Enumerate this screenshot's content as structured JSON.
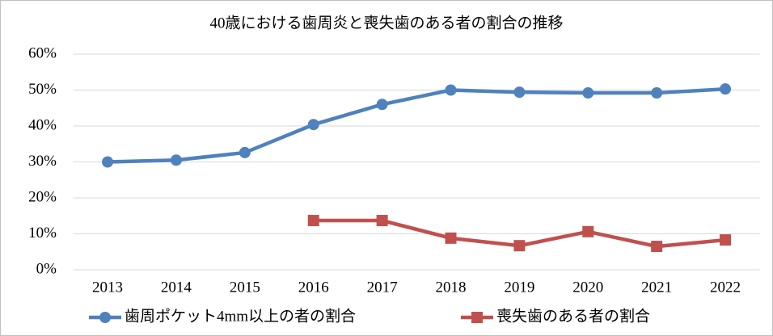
{
  "chart_data": {
    "type": "line",
    "title": "40歳における歯周炎と喪失歯のある者の割合の推移",
    "categories": [
      "2013",
      "2014",
      "2015",
      "2016",
      "2017",
      "2018",
      "2019",
      "2020",
      "2021",
      "2022"
    ],
    "series": [
      {
        "name": "歯周ポケット4mm以上の者の割合",
        "color": "#4f81bd",
        "marker": "circle",
        "values": [
          30.0,
          30.5,
          32.6,
          40.4,
          46.0,
          50.0,
          49.4,
          49.2,
          49.2,
          50.3
        ]
      },
      {
        "name": "喪失歯のある者の割合",
        "color": "#c0504d",
        "marker": "square",
        "values": [
          null,
          null,
          null,
          13.7,
          13.7,
          8.8,
          6.7,
          10.6,
          6.5,
          8.3
        ]
      }
    ],
    "ylim": [
      0,
      60
    ],
    "yticks": [
      {
        "value": 0,
        "label": "0%"
      },
      {
        "value": 10,
        "label": "10%"
      },
      {
        "value": 20,
        "label": "20%"
      },
      {
        "value": 30,
        "label": "30%"
      },
      {
        "value": 40,
        "label": "40%"
      },
      {
        "value": 50,
        "label": "50%"
      },
      {
        "value": 60,
        "label": "60%"
      }
    ],
    "grid": true,
    "legend": "bottom"
  }
}
